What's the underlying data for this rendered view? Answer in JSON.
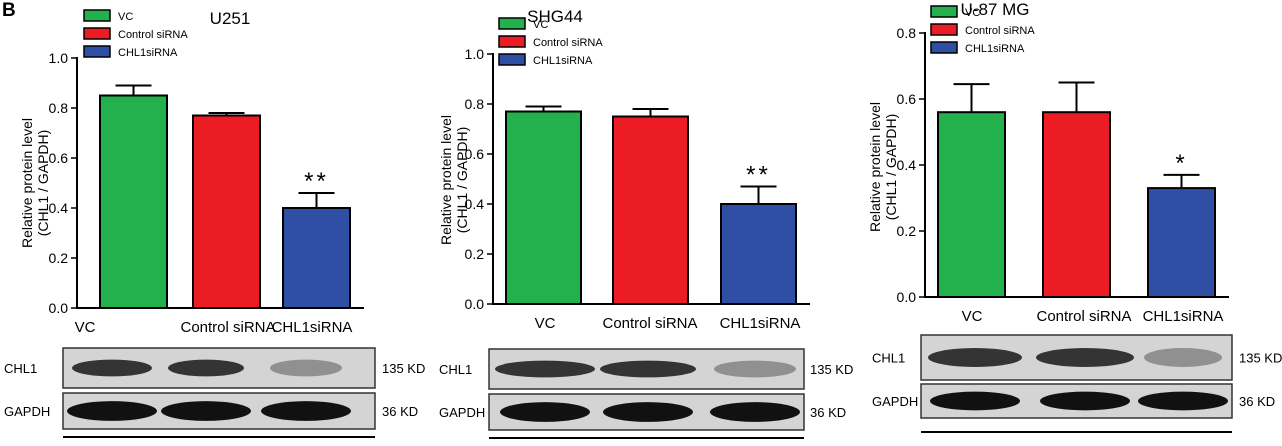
{
  "panel_label": "B",
  "colors": {
    "vc": "#22b14c",
    "control": "#ec1c24",
    "chl1": "#2e4fa3",
    "axis": "#000000"
  },
  "chart_data": [
    {
      "type": "bar",
      "title": "U251",
      "ylabel": "Relative protein level\n(CHL1 / GAPDH)",
      "categories": [
        "VC",
        "Control siRNA",
        "CHL1siRNA"
      ],
      "values": [
        0.85,
        0.77,
        0.4
      ],
      "errors": [
        0.04,
        0.01,
        0.06
      ],
      "significance": [
        "",
        "",
        "**"
      ],
      "ylim": [
        0,
        1.0
      ],
      "yticks": [
        "0.0",
        "0.2",
        "0.4",
        "0.6",
        "0.8",
        "1.0"
      ],
      "legend": [
        "VC",
        "Control siRNA",
        "CHL1siRNA"
      ],
      "legend_position": "top-left",
      "blot": {
        "rows": [
          "CHL1",
          "GAPDH"
        ],
        "sizes": [
          "135 KD",
          "36 KD"
        ]
      }
    },
    {
      "type": "bar",
      "title": "SHG44",
      "ylabel": "Relative protein level\n(CHL1 / GAPDH)",
      "categories": [
        "VC",
        "Control siRNA",
        "CHL1siRNA"
      ],
      "values": [
        0.77,
        0.75,
        0.4
      ],
      "errors": [
        0.02,
        0.03,
        0.07
      ],
      "significance": [
        "",
        "",
        "**"
      ],
      "ylim": [
        0,
        1.0
      ],
      "yticks": [
        "0.0",
        "0.2",
        "0.4",
        "0.6",
        "0.8",
        "1.0"
      ],
      "legend": [
        "VC",
        "Control siRNA",
        "CHL1siRNA"
      ],
      "legend_position": "top-left",
      "blot": {
        "rows": [
          "CHL1",
          "GAPDH"
        ],
        "sizes": [
          "135 KD",
          "36 KD"
        ]
      }
    },
    {
      "type": "bar",
      "title": "U-87 MG",
      "ylabel": "Relative protein level\n(CHL1 / GAPDH)",
      "categories": [
        "VC",
        "Control siRNA",
        "CHL1siRNA"
      ],
      "values": [
        0.56,
        0.56,
        0.33
      ],
      "errors": [
        0.085,
        0.09,
        0.04
      ],
      "significance": [
        "",
        "",
        "*"
      ],
      "ylim": [
        0,
        0.8
      ],
      "yticks": [
        "0.0",
        "0.2",
        "0.4",
        "0.6",
        "0.8"
      ],
      "legend": [
        "VC",
        "Control siRNA",
        "CHL1siRNA"
      ],
      "legend_position": "top-left",
      "blot": {
        "rows": [
          "CHL1",
          "GAPDH"
        ],
        "sizes": [
          "135 KD",
          "36 KD"
        ]
      }
    }
  ]
}
